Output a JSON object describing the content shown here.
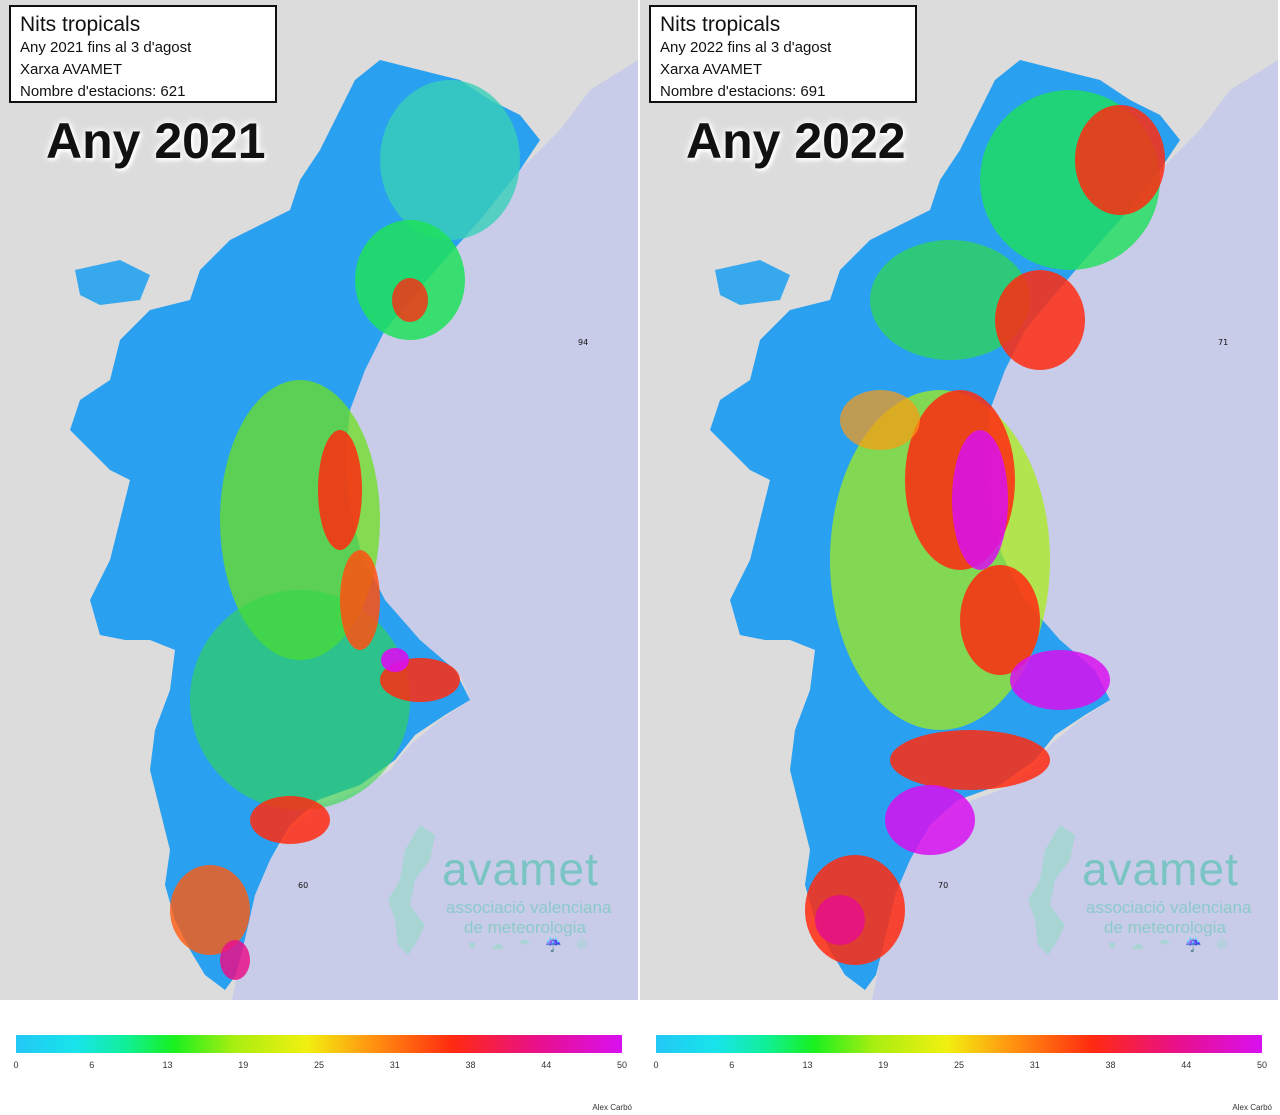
{
  "panels": [
    {
      "title": "Nits tropicals",
      "line1": "Any 2021 fins al 3 d'agost",
      "line2": "Xarxa AVAMET",
      "line3": "Nombre d'estacions: 621",
      "year_label": "Any 2021",
      "sea_label": "94",
      "sea_label2": "60"
    },
    {
      "title": "Nits tropicals",
      "line1": "Any 2022 fins al 3 d'agost",
      "line2": "Xarxa AVAMET",
      "line3": "Nombre d'estacions: 691",
      "year_label": "Any 2022",
      "sea_label": "71",
      "sea_label2": "70"
    }
  ],
  "logo": {
    "brand": "avamet",
    "sub1": "associació valenciana",
    "sub2": "de meteorologia",
    "icons": "● ☁ ☂ ☔ ✻"
  },
  "legend": {
    "ticks": [
      "0",
      "6",
      "13",
      "19",
      "25",
      "31",
      "38",
      "44",
      "50"
    ],
    "credit": "Alex Carbó"
  },
  "colors": {
    "sea": "#c8cce8",
    "land_out": "#dcdcdc",
    "low": "#2aa0f0",
    "mid": "#1ee05a",
    "high": "#ff2a10",
    "max": "#d810f0"
  }
}
